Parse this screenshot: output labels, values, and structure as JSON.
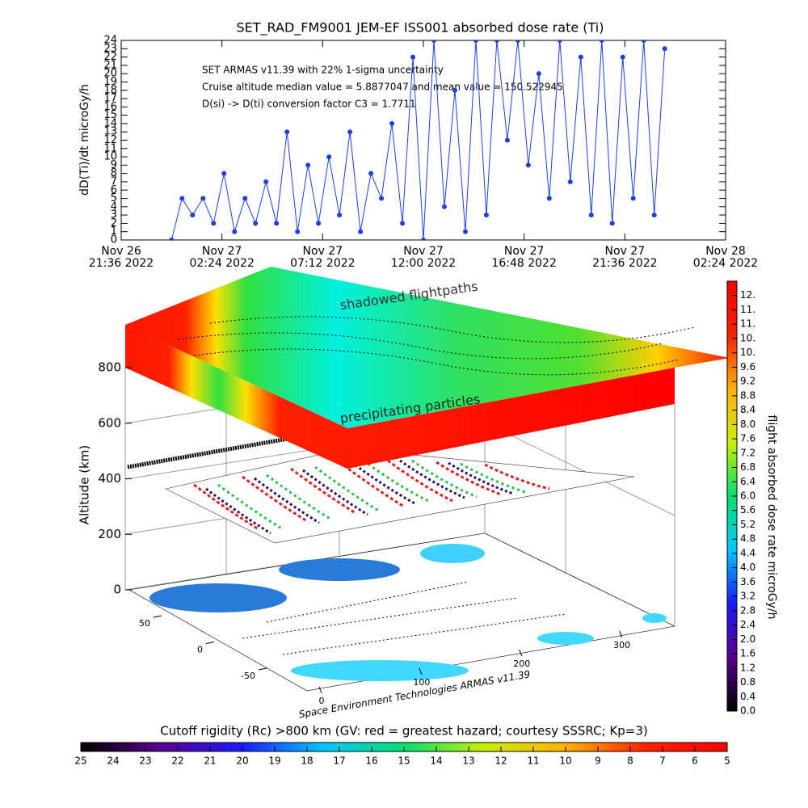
{
  "chart_data": [
    {
      "type": "line",
      "title": "SET_RAD_FM9001  JEM-EF ISS001 absorbed dose rate (Ti)",
      "ylabel": "dD(Ti)/dt microGy/h",
      "annotations": [
        "SET ARMAS v11.39 with 22% 1-sigma uncertainty",
        "Cruise altitude median value = 5.8877047 and mean value = 150.522945",
        "D(si) -> D(ti) conversion factor C3 = 1.7711"
      ],
      "color": "#1a3ee8",
      "xlim": [
        "2022-11-26T21:36",
        "2022-11-28T02:24"
      ],
      "xticks": [
        {
          "value": "2022-11-26T21:36",
          "label": "Nov 26\n21:36 2022"
        },
        {
          "value": "2022-11-27T02:24",
          "label": "Nov 27\n02:24 2022"
        },
        {
          "value": "2022-11-27T07:12",
          "label": "Nov 27\n07:12 2022"
        },
        {
          "value": "2022-11-27T12:00",
          "label": "Nov 27\n12:00 2022"
        },
        {
          "value": "2022-11-27T16:48",
          "label": "Nov 27\n16:48 2022"
        },
        {
          "value": "2022-11-27T21:36",
          "label": "Nov 27\n21:36 2022"
        },
        {
          "value": "2022-11-28T02:24",
          "label": "Nov 28\n02:24 2022"
        }
      ],
      "ylim": [
        0,
        24
      ],
      "yticks": [
        0,
        1,
        2,
        3,
        4,
        5,
        6,
        7,
        8,
        9,
        10,
        11,
        12,
        13,
        14,
        15,
        16,
        17,
        18,
        19,
        20,
        21,
        22,
        23,
        24
      ],
      "x": [
        "2022-11-27T00:00",
        "2022-11-27T00:30",
        "2022-11-27T01:00",
        "2022-11-27T01:30",
        "2022-11-27T02:00",
        "2022-11-27T02:30",
        "2022-11-27T03:00",
        "2022-11-27T03:30",
        "2022-11-27T04:00",
        "2022-11-27T04:30",
        "2022-11-27T05:00",
        "2022-11-27T05:30",
        "2022-11-27T06:00",
        "2022-11-27T06:30",
        "2022-11-27T07:00",
        "2022-11-27T07:30",
        "2022-11-27T08:00",
        "2022-11-27T08:30",
        "2022-11-27T09:00",
        "2022-11-27T09:30",
        "2022-11-27T10:00",
        "2022-11-27T10:30",
        "2022-11-27T11:00",
        "2022-11-27T11:30",
        "2022-11-27T12:00",
        "2022-11-27T12:30",
        "2022-11-27T13:00",
        "2022-11-27T13:30",
        "2022-11-27T14:00",
        "2022-11-27T14:30",
        "2022-11-27T15:00",
        "2022-11-27T15:30",
        "2022-11-27T16:00",
        "2022-11-27T16:30",
        "2022-11-27T17:00",
        "2022-11-27T17:30",
        "2022-11-27T18:00",
        "2022-11-27T18:30",
        "2022-11-27T19:00",
        "2022-11-27T19:30",
        "2022-11-27T20:00",
        "2022-11-27T20:30",
        "2022-11-27T21:00",
        "2022-11-27T21:30",
        "2022-11-27T22:00",
        "2022-11-27T22:30",
        "2022-11-27T23:00",
        "2022-11-27T23:30"
      ],
      "values": [
        0,
        5,
        3,
        5,
        2,
        8,
        1,
        5,
        2,
        7,
        2,
        13,
        1,
        9,
        2,
        10,
        3,
        13,
        1,
        8,
        5,
        14,
        2,
        22,
        0,
        24,
        4,
        18,
        1,
        24,
        3,
        24,
        12,
        24,
        9,
        20,
        5,
        24,
        7,
        22,
        3,
        24,
        2,
        22,
        5,
        24,
        3,
        23
      ]
    },
    {
      "type": "surface3d",
      "layer_labels": [
        "shadowed flightpaths",
        "precipitating particles"
      ],
      "zlabel": "Altitude (km)",
      "zlim": [
        0,
        800
      ],
      "zticks": [
        0,
        200,
        400,
        600,
        800
      ],
      "latlim": [
        -90,
        90
      ],
      "latticks": [
        50,
        0,
        -50
      ],
      "lonlim": [
        0,
        360
      ],
      "lonticks": [
        0,
        100,
        200,
        300
      ],
      "credit": "Space Environment Technologies ARMAS v11.39"
    },
    {
      "type": "colorbar",
      "orientation": "vertical",
      "label": "flight absorbed dose rate microGy/h",
      "clim": [
        0,
        12
      ],
      "colors": [
        "#000000",
        "#5a0090",
        "#1a1aff",
        "#00c8ff",
        "#00e070",
        "#c8f000",
        "#ffb000",
        "#ff2000",
        "#ff0000"
      ],
      "ticks": [
        {
          "value": 0,
          "label": "0.0"
        },
        0.4,
        0.8,
        1.2,
        1.6,
        {
          "value": 2,
          "label": "2.0"
        },
        2.4,
        2.8,
        3.2,
        3.6,
        {
          "value": 4,
          "label": "4.0"
        },
        4.4,
        4.8,
        5.2,
        5.6,
        {
          "value": 6,
          "label": "6.0"
        },
        6.4,
        6.8,
        7.2,
        7.6,
        {
          "value": 8,
          "label": "8.0"
        },
        8.4,
        8.8,
        9.2,
        9.6,
        {
          "value": 10,
          "label": "10."
        },
        {
          "value": 10.4,
          "label": "10."
        },
        {
          "value": 10.8,
          "label": "11."
        },
        {
          "value": 11.2,
          "label": "11."
        },
        {
          "value": 11.6,
          "label": "12."
        }
      ]
    },
    {
      "type": "colorbar",
      "orientation": "horizontal",
      "label": "Cutoff rigidity (Rc) >800 km (GV: red = greatest hazard; courtesy SSSRC; Kp=3)",
      "clim": [
        25,
        5
      ],
      "colors": [
        "#000000",
        "#5a0090",
        "#1a1aff",
        "#00c8ff",
        "#00e070",
        "#c8f000",
        "#ffb000",
        "#ff2000",
        "#ff0000"
      ],
      "ticks": [
        25,
        24,
        23,
        22,
        21,
        20,
        19,
        18,
        17,
        16,
        15,
        14,
        13,
        12,
        11,
        10,
        9,
        8,
        7,
        6,
        5
      ]
    }
  ]
}
